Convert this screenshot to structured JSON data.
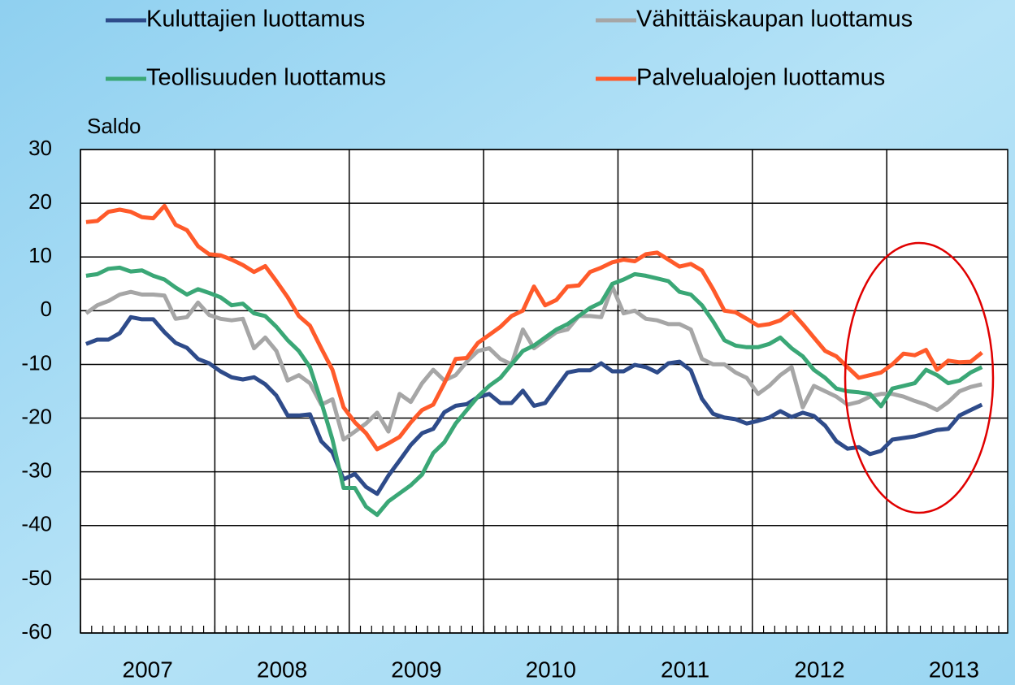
{
  "chart_data": {
    "type": "line",
    "y_label": "Saldo",
    "x": [
      2007.042,
      2007.125,
      2007.208,
      2007.292,
      2007.375,
      2007.458,
      2007.542,
      2007.625,
      2007.708,
      2007.792,
      2007.875,
      2007.958,
      2008.042,
      2008.125,
      2008.208,
      2008.292,
      2008.375,
      2008.458,
      2008.542,
      2008.625,
      2008.708,
      2008.792,
      2008.875,
      2008.958,
      2009.042,
      2009.125,
      2009.208,
      2009.292,
      2009.375,
      2009.458,
      2009.542,
      2009.625,
      2009.708,
      2009.792,
      2009.875,
      2009.958,
      2010.042,
      2010.125,
      2010.208,
      2010.292,
      2010.375,
      2010.458,
      2010.542,
      2010.625,
      2010.708,
      2010.792,
      2010.875,
      2010.958,
      2011.042,
      2011.125,
      2011.208,
      2011.292,
      2011.375,
      2011.458,
      2011.542,
      2011.625,
      2011.708,
      2011.792,
      2011.875,
      2011.958,
      2012.042,
      2012.125,
      2012.208,
      2012.292,
      2012.375,
      2012.458,
      2012.542,
      2012.625,
      2012.708,
      2012.792,
      2012.875,
      2012.958,
      2013.042,
      2013.125,
      2013.208,
      2013.292,
      2013.375,
      2013.458,
      2013.542,
      2013.625,
      2013.708
    ],
    "series": [
      {
        "name": "Kuluttajien luottamus",
        "color": "#2e4b8a",
        "values": [
          -6.2,
          -5.4,
          -5.4,
          -4.2,
          -1.2,
          -1.6,
          -1.6,
          -4,
          -6,
          -6.9,
          -9,
          -9.8,
          -11.3,
          -12.4,
          -12.8,
          -12.4,
          -13.7,
          -15.8,
          -19.5,
          -19.5,
          -19.3,
          -24.3,
          -26.4,
          -31.4,
          -30.4,
          -32.8,
          -34.1,
          -30.7,
          -27.9,
          -25,
          -22.8,
          -22,
          -18.9,
          -17.7,
          -17.4,
          -16.1,
          -15.5,
          -17.2,
          -17.2,
          -14.9,
          -17.7,
          -17.2,
          -14.3,
          -11.5,
          -11.1,
          -11.1,
          -9.8,
          -11.3,
          -11.3,
          -10.1,
          -10.5,
          -11.5,
          -9.8,
          -9.5,
          -11.1,
          -16.4,
          -19.2,
          -19.9,
          -20.2,
          -21,
          -20.5,
          -19.9,
          -18.7,
          -19.8,
          -19,
          -19.6,
          -21.4,
          -24.3,
          -25.7,
          -25.4,
          -26.7,
          -26.1,
          -24,
          -23.7,
          -23.4,
          -22.8,
          -22.2,
          -22,
          -19.5,
          -18.5,
          -17.5
        ]
      },
      {
        "name": "Vähittäiskaupan luottamus",
        "color": "#a6a6a6",
        "values": [
          -0.5,
          1,
          1.8,
          3,
          3.5,
          3,
          3,
          2.8,
          -1.5,
          -1.2,
          1.5,
          -0.8,
          -1.5,
          -1.8,
          -1.5,
          -7,
          -5,
          -7.5,
          -13,
          -12,
          -13.5,
          -17.5,
          -16.5,
          -24,
          -22.5,
          -21,
          -19,
          -22.5,
          -15.5,
          -17,
          -13.5,
          -11,
          -13,
          -12,
          -9.5,
          -7.5,
          -7,
          -9,
          -10,
          -3.5,
          -7,
          -5.5,
          -4,
          -3.5,
          -1,
          -1,
          -1.2,
          4.5,
          -0.5,
          0,
          -1.5,
          -1.8,
          -2.5,
          -2.5,
          -3.5,
          -9,
          -10,
          -10,
          -11.5,
          -12.5,
          -15.5,
          -14,
          -12,
          -10.5,
          -18,
          -14,
          -15,
          -16,
          -17.5,
          -17,
          -16,
          -15.5,
          -15.5,
          -16,
          -16.8,
          -17.5,
          -18.5,
          -17,
          -15,
          -14.2,
          -13.7
        ]
      },
      {
        "name": "Teollisuuden luottamus",
        "color": "#3aa776",
        "values": [
          6.5,
          6.8,
          7.8,
          8,
          7.3,
          7.5,
          6.5,
          5.8,
          4.3,
          3,
          4,
          3.3,
          2.5,
          1,
          1.3,
          -0.5,
          -1,
          -3,
          -5.5,
          -7.5,
          -10.5,
          -17,
          -24,
          -33,
          -33,
          -36.5,
          -38,
          -35.5,
          -34,
          -32.5,
          -30.5,
          -26.5,
          -24.5,
          -21,
          -18.5,
          -16,
          -14,
          -12.5,
          -10,
          -7.5,
          -6.5,
          -5,
          -3.5,
          -2.5,
          -1,
          0.5,
          1.5,
          5,
          5.8,
          6.8,
          6.5,
          6,
          5.5,
          3.5,
          3,
          1,
          -2,
          -5.5,
          -6.5,
          -6.8,
          -6.8,
          -6.2,
          -5,
          -7,
          -8.5,
          -11,
          -12.5,
          -14.5,
          -15,
          -15.2,
          -15.5,
          -17.8,
          -14.5,
          -14,
          -13.5,
          -11,
          -12,
          -13.5,
          -13,
          -11.5,
          -10.5
        ]
      },
      {
        "name": "Palvelualojen luottamus",
        "color": "#ff5a2a",
        "values": [
          16.5,
          16.7,
          18.4,
          18.8,
          18.4,
          17.4,
          17.2,
          19.5,
          16,
          15,
          12,
          10.5,
          10.3,
          9.5,
          8.5,
          7.2,
          8.3,
          5.5,
          2.5,
          -1,
          -2.8,
          -7,
          -11,
          -18,
          -20.8,
          -22.8,
          -25.8,
          -24.7,
          -23.5,
          -20.8,
          -18.5,
          -17.5,
          -13.5,
          -9,
          -8.8,
          -6,
          -4.5,
          -3,
          -1,
          0,
          4.5,
          1,
          2,
          4.5,
          4.7,
          7.2,
          8,
          9,
          9.5,
          9.2,
          10.5,
          10.8,
          9.5,
          8.2,
          8.7,
          7.5,
          4,
          0,
          -0.3,
          -1.5,
          -2.8,
          -2.5,
          -1.8,
          -0.2,
          -2.5,
          -5,
          -7.5,
          -8.5,
          -10.5,
          -12.5,
          -12,
          -11.5,
          -10,
          -8,
          -8.3,
          -7.3,
          -11,
          -9.3,
          -9.6,
          -9.5,
          -7.8
        ]
      }
    ],
    "xlim": [
      2007,
      2013.9
    ],
    "xticks": [
      2007,
      2008,
      2009,
      2010,
      2011,
      2012,
      2013
    ],
    "ylim": [
      -60,
      30
    ],
    "yticks": [
      -60,
      -50,
      -40,
      -30,
      -20,
      -10,
      0,
      10,
      20,
      30
    ],
    "grid": true
  }
}
